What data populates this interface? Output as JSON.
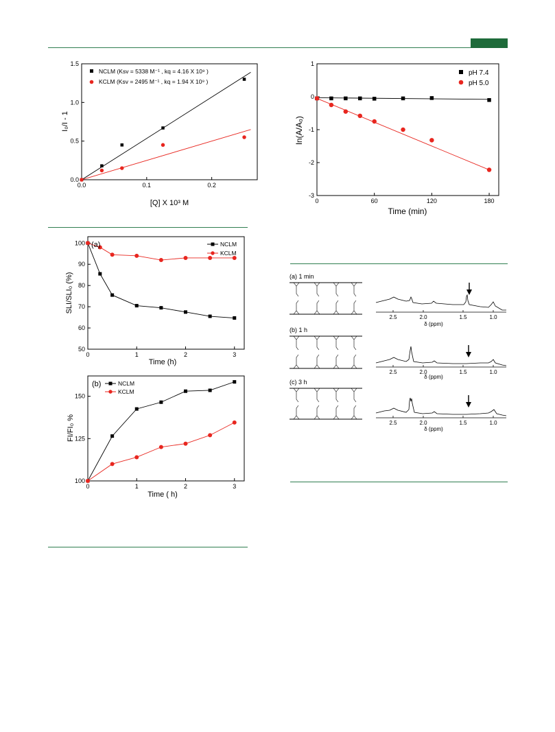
{
  "header": {
    "accent_color": "#1e6b3a",
    "rule_color": "#2e7d4f"
  },
  "figures": {
    "stern_volmer": {
      "xlabel": "[Q] X 10³ M",
      "ylabel": "I₀/I - 1",
      "legend": [
        "NCLM (Ksv = 5338 M⁻¹ , kq = 4.16 X 10⁹ )",
        "KCLM (Ksv = 2495 M⁻¹ , kq = 1.94 X 10⁹ )"
      ],
      "xticks": [
        "0.0",
        "0.1",
        "0.2"
      ],
      "yticks": [
        "0.0",
        "0.5",
        "1.0",
        "1.5"
      ]
    },
    "ln_decay": {
      "xlabel": "Time (min)",
      "ylabel": "ln(A/A₀)",
      "legend": [
        "pH 7.4",
        "pH 5.0"
      ],
      "xticks": [
        "0",
        "60",
        "120",
        "180"
      ],
      "yticks": [
        "1",
        "0",
        "-1",
        "-2",
        "-3"
      ]
    },
    "sli": {
      "panel_label": "(a)",
      "xlabel": "Time (h)",
      "ylabel": "SLI/SLI₀ (%)",
      "legend": [
        "NCLM",
        "KCLM"
      ],
      "xticks": [
        "0",
        "1",
        "2",
        "3"
      ],
      "yticks": [
        "50",
        "60",
        "70",
        "80",
        "90",
        "100"
      ]
    },
    "fi": {
      "panel_label": "(b)",
      "xlabel": "Time ( h)",
      "ylabel": "FI/FI₀ %",
      "legend": [
        "NCLM",
        "KCLM"
      ],
      "xticks": [
        "0",
        "1",
        "2",
        "3"
      ],
      "yticks": [
        "100",
        "125",
        "150"
      ]
    },
    "nmr": {
      "panels": [
        {
          "label": "(a) 1 min",
          "axis_label": "δ (ppm)",
          "ticks": [
            "2.5",
            "2.0",
            "1.5",
            "1.0"
          ]
        },
        {
          "label": "(b) 1 h",
          "axis_label": "δ (ppm)",
          "ticks": [
            "2.5",
            "2.0",
            "1.5",
            "1.0"
          ]
        },
        {
          "label": "(c) 3 h",
          "axis_label": "δ (ppm)",
          "ticks": [
            "2.5",
            "2.0",
            "1.5",
            "1.0"
          ]
        }
      ]
    }
  },
  "chart_data": [
    {
      "type": "scatter",
      "xlabel": "[Q] X 10³ M",
      "ylabel": "I₀/I - 1",
      "xlim": [
        0,
        0.27
      ],
      "ylim": [
        0,
        1.5
      ],
      "series": [
        {
          "name": "NCLM (Ksv = 5338 M⁻¹ , kq = 4.16 X 10⁹ )",
          "color": "#000000",
          "marker": "square",
          "x": [
            0,
            0.031,
            0.062,
            0.125,
            0.25
          ],
          "y": [
            0,
            0.18,
            0.45,
            0.67,
            1.3
          ],
          "fit": [
            [
              0,
              0
            ],
            [
              0.26,
              1.39
            ]
          ]
        },
        {
          "name": "KCLM (Ksv = 2495 M⁻¹ , kq = 1.94 X 10⁹ )",
          "color": "#e8261f",
          "marker": "circle",
          "x": [
            0,
            0.031,
            0.062,
            0.125,
            0.25
          ],
          "y": [
            0,
            0.12,
            0.15,
            0.45,
            0.55
          ],
          "fit": [
            [
              0,
              0
            ],
            [
              0.26,
              0.65
            ]
          ]
        }
      ]
    },
    {
      "type": "scatter",
      "xlabel": "Time (min)",
      "ylabel": "ln(A/A₀)",
      "xlim": [
        0,
        190
      ],
      "ylim": [
        -3,
        1
      ],
      "series": [
        {
          "name": "pH 7.4",
          "color": "#000000",
          "marker": "square",
          "x": [
            0,
            15,
            30,
            45,
            60,
            90,
            120,
            180
          ],
          "y": [
            -0.05,
            -0.05,
            -0.05,
            -0.05,
            -0.06,
            -0.05,
            -0.04,
            -0.1
          ],
          "fit": [
            [
              0,
              -0.03
            ],
            [
              180,
              -0.08
            ]
          ]
        },
        {
          "name": "pH 5.0",
          "color": "#e8261f",
          "marker": "circle",
          "x": [
            0,
            15,
            30,
            45,
            60,
            90,
            120,
            180
          ],
          "y": [
            -0.05,
            -0.25,
            -0.45,
            -0.58,
            -0.75,
            -1.0,
            -1.32,
            -2.22
          ],
          "fit": [
            [
              0,
              -0.05
            ],
            [
              180,
              -2.22
            ]
          ]
        }
      ]
    },
    {
      "type": "line",
      "xlabel": "Time (h)",
      "ylabel": "SLI/SLI₀ (%)",
      "xlim": [
        0,
        3.2
      ],
      "ylim": [
        50,
        103
      ],
      "series": [
        {
          "name": "NCLM",
          "color": "#000000",
          "marker": "square",
          "x": [
            0,
            0.25,
            0.5,
            1,
            1.5,
            2,
            2.5,
            3
          ],
          "y": [
            100,
            85.5,
            75.5,
            70.5,
            69.5,
            67.5,
            65.5,
            64.7
          ]
        },
        {
          "name": "KCLM",
          "color": "#e8261f",
          "marker": "circle",
          "x": [
            0,
            0.25,
            0.5,
            1,
            1.5,
            2,
            2.5,
            3
          ],
          "y": [
            100,
            98,
            94.5,
            94,
            92,
            93,
            93,
            93
          ]
        }
      ]
    },
    {
      "type": "line",
      "xlabel": "Time ( h)",
      "ylabel": "FI/FI₀ %",
      "xlim": [
        0,
        3.2
      ],
      "ylim": [
        100,
        162
      ],
      "series": [
        {
          "name": "NCLM",
          "color": "#000000",
          "marker": "square",
          "x": [
            0,
            0.5,
            1,
            1.5,
            2,
            2.5,
            3
          ],
          "y": [
            100,
            126.5,
            142.5,
            146.5,
            153,
            153.5,
            158.5
          ]
        },
        {
          "name": "KCLM",
          "color": "#e8261f",
          "marker": "circle",
          "x": [
            0,
            0.5,
            1,
            1.5,
            2,
            2.5,
            3
          ],
          "y": [
            100,
            110,
            114,
            120,
            122,
            127,
            134.5
          ]
        }
      ]
    }
  ]
}
